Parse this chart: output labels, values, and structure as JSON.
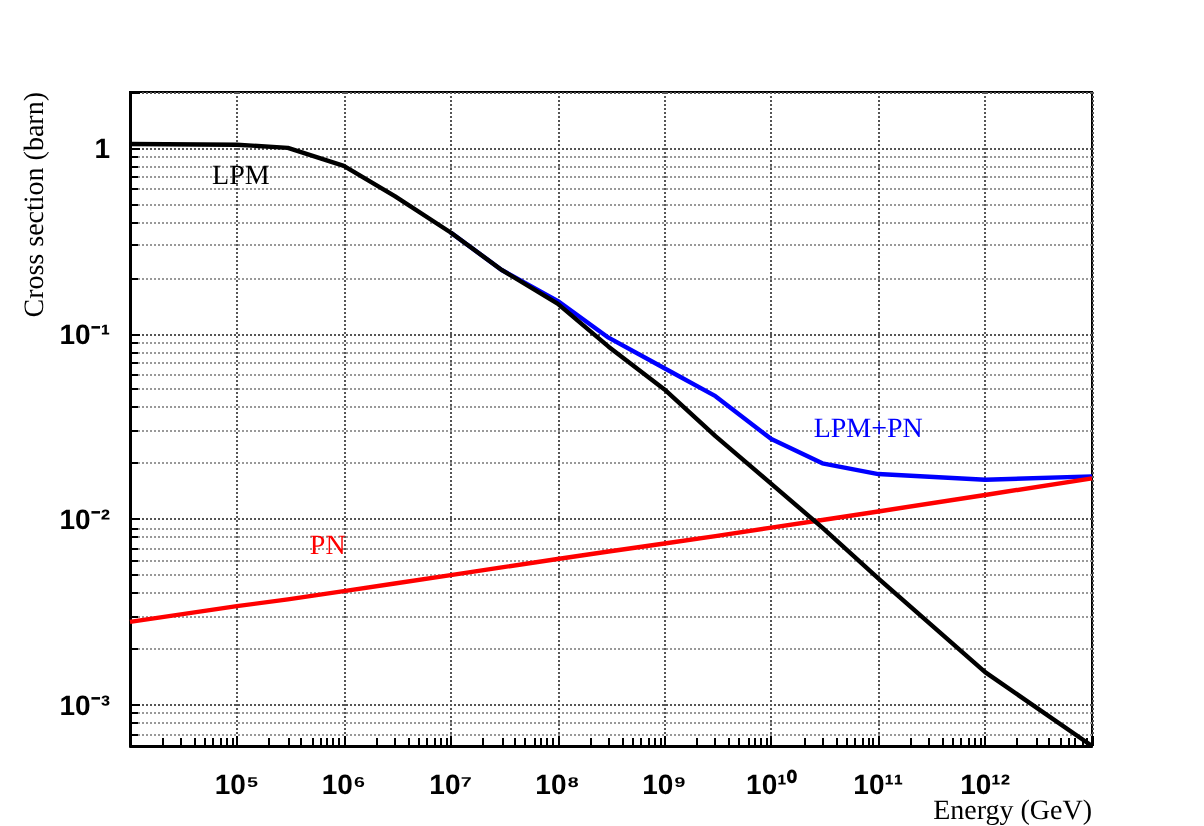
{
  "chart_data": {
    "type": "line",
    "xlabel": "Energy (GeV)",
    "ylabel": "Cross section (barn)",
    "log": "xy",
    "grid": true,
    "legend": false,
    "marker": "none",
    "line_style": "solid",
    "xlim": [
      10000,
      10000000000000
    ],
    "ylim": [
      0.0006,
      2
    ],
    "xticks": [
      {
        "value": 100000,
        "label": "10⁵"
      },
      {
        "value": 1000000,
        "label": "10⁶"
      },
      {
        "value": 10000000,
        "label": "10⁷"
      },
      {
        "value": 100000000,
        "label": "10⁸"
      },
      {
        "value": 1000000000,
        "label": "10⁹"
      },
      {
        "value": 10000000000,
        "label": "10¹⁰"
      },
      {
        "value": 100000000000,
        "label": "10¹¹"
      },
      {
        "value": 1000000000000,
        "label": "10¹²"
      }
    ],
    "yticks": [
      {
        "value": 0.001,
        "label": "10⁻³"
      },
      {
        "value": 0.01,
        "label": "10⁻²"
      },
      {
        "value": 0.1,
        "label": "10⁻¹"
      },
      1
    ],
    "x": [
      10000,
      100000,
      300000,
      1000000,
      3000000,
      10000000,
      30000000,
      100000000,
      300000000,
      1000000000,
      3000000000,
      10000000000,
      30000000000,
      100000000000,
      1000000000000,
      10000000000000
    ],
    "series": [
      {
        "name": "LPM",
        "color": "#000000",
        "values": [
          1.05,
          1.04,
          1.0,
          0.8,
          0.55,
          0.35,
          0.22,
          0.145,
          0.085,
          0.05,
          0.028,
          0.0155,
          0.009,
          0.0048,
          0.0015,
          0.0006
        ]
      },
      {
        "name": "PN",
        "color": "#ff0000",
        "values": [
          0.0028,
          0.0034,
          0.0037,
          0.0041,
          0.0045,
          0.005,
          0.0055,
          0.0061,
          0.0067,
          0.0074,
          0.0081,
          0.009,
          0.0099,
          0.011,
          0.0135,
          0.0166
        ]
      },
      {
        "name": "LPM+PN",
        "color": "#0000ff",
        "values": [
          null,
          null,
          null,
          null,
          null,
          0.35,
          0.22,
          0.15,
          0.095,
          0.065,
          0.046,
          0.027,
          0.02,
          0.0175,
          0.0163,
          0.017
        ]
      }
    ]
  }
}
